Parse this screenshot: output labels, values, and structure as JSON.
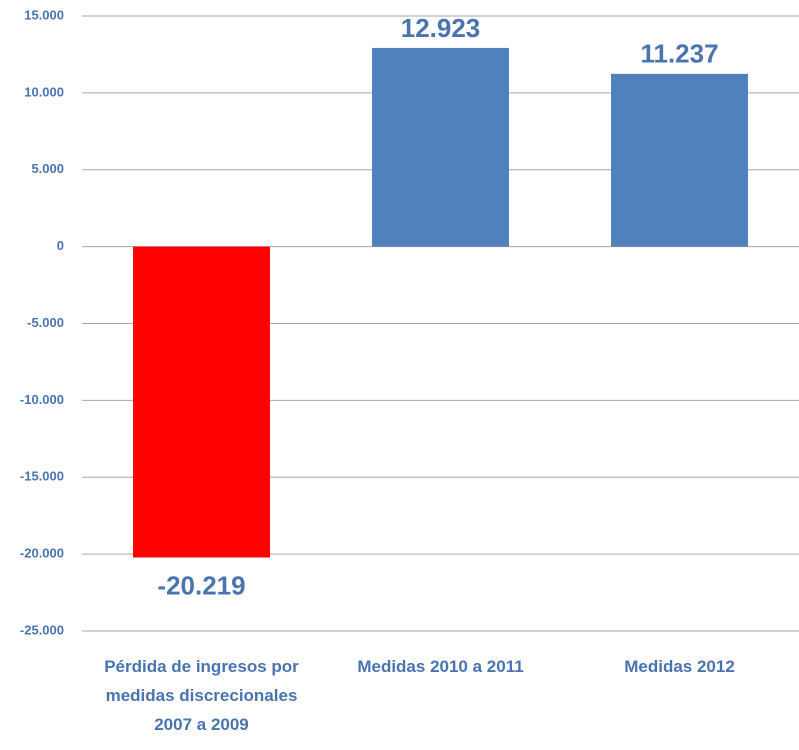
{
  "chart_data": {
    "type": "bar",
    "categories": [
      "Pérdida de ingresos por medidas discrecionales 2007 a 2009",
      "Medidas 2010 a 2011",
      "Medidas 2012"
    ],
    "values": [
      -20219,
      12923,
      11237
    ],
    "value_labels": [
      "-20.219",
      "12.923",
      "11.237"
    ],
    "colors": [
      "#ff0000",
      "#4f81bd",
      "#4f81bd"
    ],
    "ylim": [
      -25000,
      15000
    ],
    "yticks": [
      {
        "value": -25000,
        "label": "-25.000"
      },
      {
        "value": -20000,
        "label": "-20.000"
      },
      {
        "value": -15000,
        "label": "-15.000"
      },
      {
        "value": -10000,
        "label": "-10.000"
      },
      {
        "value": -5000,
        "label": "-5.000"
      },
      0,
      {
        "value": 5000,
        "label": "5.000"
      },
      {
        "value": 10000,
        "label": "10.000"
      },
      {
        "value": 15000,
        "label": "15.000"
      }
    ],
    "grid": true
  }
}
